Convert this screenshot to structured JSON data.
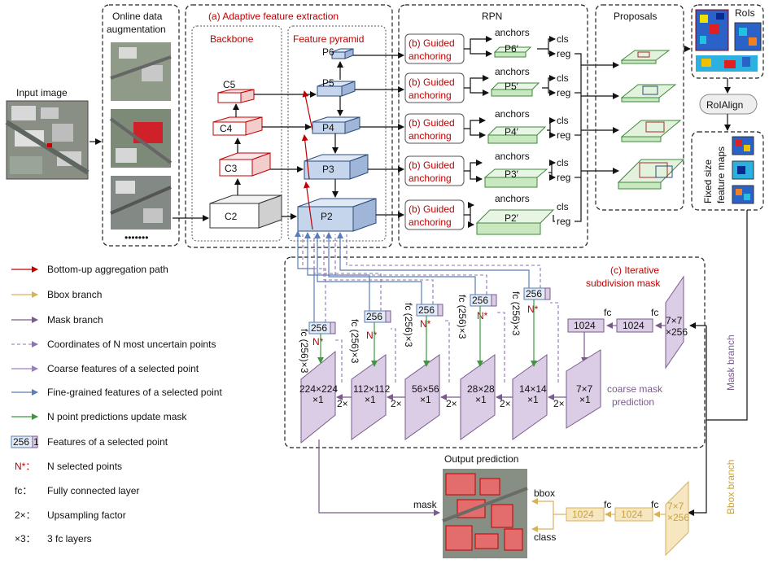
{
  "labels": {
    "input_image": "Input image",
    "online_aug": [
      "Online data",
      "augmentation"
    ],
    "aug_dots": "•••••••",
    "adaptive": "(a) Adaptive feature extraction",
    "backbone": "Backbone",
    "feature_pyramid": "Feature pyramid",
    "rpn": "RPN",
    "proposals": "Proposals",
    "rois": "RoIs",
    "roialign": "RoIAlign",
    "fixed_maps": [
      "Fixed size",
      "feature maps"
    ],
    "iterative": [
      "(c) Iterative",
      "subdivision mask"
    ],
    "coarse_pred": [
      "coarse mask",
      "prediction"
    ],
    "mask_branch": "Mask branch",
    "bbox_branch": "Bbox branch",
    "output_prediction": "Output prediction",
    "mask": "mask",
    "bbox": "bbox",
    "class": "class",
    "anchors": "anchors",
    "cls": "cls",
    "reg": "reg",
    "fc": "fc",
    "fc_vertical": "fc (256)×3",
    "nstar": "N*",
    "two_x": "2×",
    "feat256": "256",
    "feat1": "1",
    "num1024": "1024",
    "map7": [
      "7×7",
      "×256"
    ]
  },
  "guided": [
    "(b) Guided",
    "anchoring"
  ],
  "backbone_levels": [
    "C2",
    "C3",
    "C4",
    "C5"
  ],
  "pyramid_levels": [
    "P2",
    "P3",
    "P4",
    "P5",
    "P6"
  ],
  "rpn_levels": [
    "P2′",
    "P3′",
    "P4′",
    "P5′",
    "P6′"
  ],
  "mask_maps": [
    [
      "224×224",
      "×1"
    ],
    [
      "112×112",
      "×1"
    ],
    [
      "56×56",
      "×1"
    ],
    [
      "28×28",
      "×1"
    ],
    [
      "14×14",
      "×1"
    ],
    [
      "7×7",
      "×1"
    ]
  ],
  "legend": [
    {
      "icon": "red-arrow",
      "text": "Bottom-up aggregation path",
      "color": "#c00000"
    },
    {
      "icon": "gold-arrow",
      "text": "Bbox branch",
      "color": "#d8b25a"
    },
    {
      "icon": "purple-arrow",
      "text": "Mask branch",
      "color": "#7a5b8c"
    },
    {
      "icon": "dashed-arrow",
      "text": "Coordinates of N most uncertain points",
      "color": "#8d73b5"
    },
    {
      "icon": "lilac-arrow",
      "text": "Coarse features of a selected point",
      "color": "#9b7fc0"
    },
    {
      "icon": "blue-arrow",
      "text": "Fine-grained features of a selected point",
      "color": "#5a7eb5"
    },
    {
      "icon": "green-arrow",
      "text": "N point predictions update mask",
      "color": "#3c9a3c"
    },
    {
      "icon": "feature-cube",
      "text": "Features of a selected point",
      "sym": "256 1"
    },
    {
      "icon": "nstar",
      "text": "N selected points",
      "sym": "N*："
    },
    {
      "icon": "fc",
      "text": "Fully connected layer",
      "sym": "fc："
    },
    {
      "icon": "upsample",
      "text": "Upsampling factor",
      "sym": "2×："
    },
    {
      "icon": "x3",
      "text": "3 fc layers",
      "sym": "×3："
    }
  ],
  "colors": {
    "red": "#c00000",
    "purple": "#7a5b8c",
    "gold": "#d8b25a",
    "pyramid_fill": "#c5d5ec",
    "proposal_fill": "#d9efd3",
    "mask_fill": "#dccde6",
    "bbox_fill": "#f7e7c0"
  }
}
